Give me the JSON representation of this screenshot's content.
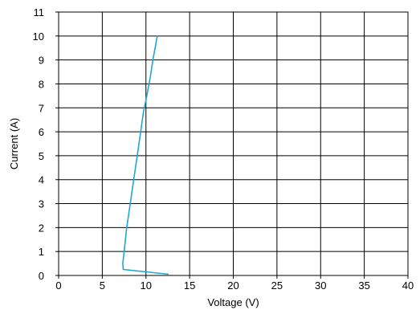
{
  "chart_data": {
    "type": "line",
    "title": "",
    "xlabel": "Voltage (V)",
    "ylabel": "Current (A)",
    "xlim": [
      0,
      40
    ],
    "ylim": [
      0,
      11
    ],
    "xticks": [
      0,
      5,
      10,
      15,
      20,
      25,
      30,
      35,
      40
    ],
    "yticks": [
      0,
      1,
      2,
      3,
      4,
      5,
      6,
      7,
      8,
      9,
      10,
      11
    ],
    "grid": true,
    "legend": "none",
    "colors": {
      "series": "#1ea8d0",
      "grid": "#000000",
      "axis": "#000000"
    },
    "series": [
      {
        "x": [
          12.6,
          7.4,
          7.35,
          7.5,
          7.8,
          8.2,
          8.6,
          9.0,
          9.4,
          9.7,
          10.1,
          10.5,
          10.8,
          11.1,
          11.3
        ],
        "y": [
          0.05,
          0.25,
          0.5,
          1.0,
          2.0,
          3.0,
          4.0,
          5.0,
          6.0,
          6.8,
          7.5,
          8.3,
          9.0,
          9.6,
          10.0
        ]
      }
    ]
  }
}
